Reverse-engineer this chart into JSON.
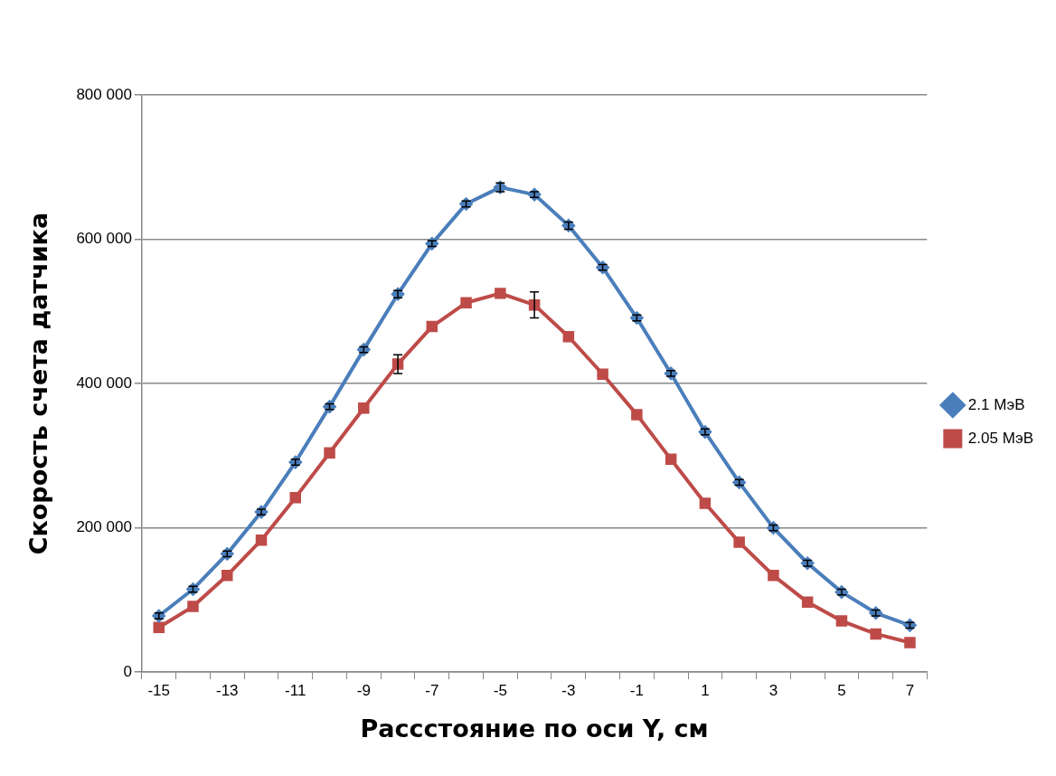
{
  "chart_data": {
    "type": "line",
    "xlabel": "Рассстояние по оси Y, см",
    "ylabel": "Скорость счета датчика",
    "categories": [
      "-15",
      null,
      "-13",
      null,
      "-11",
      null,
      "-9",
      null,
      "-7",
      null,
      "-5",
      null,
      "-3",
      null,
      "-1",
      null,
      "1",
      null,
      "3",
      null,
      "5",
      null,
      "7"
    ],
    "ylim": [
      0,
      800000
    ],
    "yticks": [
      {
        "value": 0,
        "label": "0"
      },
      {
        "value": 200000,
        "label": "200 000"
      },
      {
        "value": 400000,
        "label": "400 000"
      },
      {
        "value": 600000,
        "label": "600 000"
      },
      {
        "value": 800000,
        "label": "800 000"
      }
    ],
    "grid": "y",
    "legend": "right",
    "line_style": "solid",
    "series": [
      {
        "name": "2.1 МэВ",
        "color": "#4a7ebb",
        "marker": "diamond",
        "values": [
          78000,
          115000,
          164000,
          222000,
          291000,
          368000,
          447000,
          524000,
          594000,
          649000,
          672000,
          662000,
          619000,
          561000,
          491000,
          414000,
          333000,
          263000,
          200000,
          151000,
          111000,
          82000,
          65000
        ],
        "errors": [
          4000,
          4000,
          4000,
          4000,
          4000,
          4000,
          4000,
          5000,
          4000,
          4000,
          6000,
          4000,
          5000,
          4000,
          4000,
          4000,
          4000,
          4000,
          4000,
          4000,
          4000,
          4000,
          4000
        ]
      },
      {
        "name": "2.05 МэВ",
        "color": "#be4b48",
        "marker": "square",
        "values": [
          62000,
          91000,
          134000,
          183000,
          242000,
          304000,
          366000,
          427000,
          479000,
          512000,
          525000,
          509000,
          465000,
          413000,
          357000,
          295000,
          234000,
          180000,
          134000,
          97000,
          71000,
          53000,
          41000
        ],
        "errors": [
          null,
          null,
          null,
          null,
          null,
          null,
          null,
          13000,
          null,
          null,
          null,
          18000,
          null,
          null,
          null,
          null,
          null,
          null,
          null,
          null,
          null,
          null,
          null
        ]
      }
    ]
  }
}
